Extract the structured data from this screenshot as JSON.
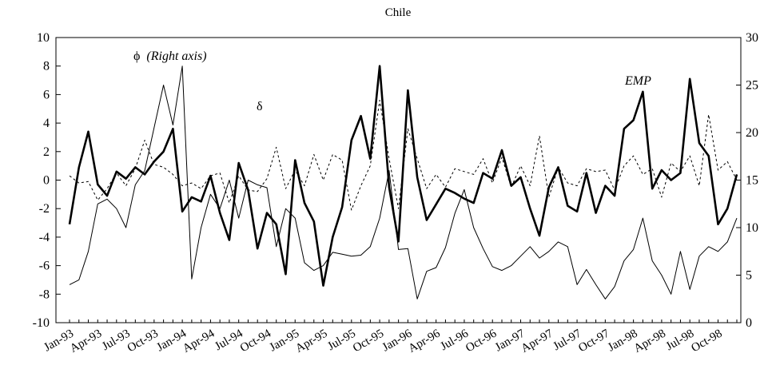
{
  "chart_data": {
    "type": "line",
    "title": "Chile",
    "x_tick_labels": [
      "Jan-93",
      "Apr-93",
      "Jul-93",
      "Oct-93",
      "Jan-94",
      "Apr-94",
      "Jul-94",
      "Oct-94",
      "Jan-95",
      "Apr-95",
      "Jul-95",
      "Oct-95",
      "Jan-96",
      "Apr-96",
      "Jul-96",
      "Oct-96",
      "Jan-97",
      "Apr-97",
      "Jul-97",
      "Oct-97",
      "Jan-98",
      "Apr-98",
      "Jul-98",
      "Oct-98"
    ],
    "x_start": "Jan-93",
    "x_end": "Dec-98",
    "y_left_range": [
      -10,
      10
    ],
    "y_left_ticks": [
      -10,
      -8,
      -6,
      -4,
      -2,
      0,
      2,
      4,
      6,
      8,
      10
    ],
    "y_right_range": [
      0,
      30
    ],
    "y_right_ticks": [
      0,
      5,
      10,
      15,
      20,
      25,
      30
    ],
    "grid": false,
    "annotations": {
      "phi": {
        "symbol": "ϕ",
        "text": "(Right axis)"
      },
      "delta": "δ",
      "emp": "EMP"
    },
    "series": [
      {
        "name": "EMP",
        "axis": "left",
        "style": "thick",
        "values": [
          -3.1,
          0.9,
          3.4,
          -0.3,
          -1.1,
          0.6,
          0.1,
          0.9,
          0.4,
          1.3,
          2.0,
          3.6,
          -2.2,
          -1.2,
          -1.5,
          0.3,
          -2.3,
          -4.2,
          1.2,
          -0.7,
          -4.8,
          -2.3,
          -3.1,
          -6.6,
          1.4,
          -1.6,
          -2.9,
          -7.4,
          -4.0,
          -1.9,
          2.8,
          4.5,
          1.5,
          8.0,
          -0.5,
          -4.3,
          6.3,
          0.2,
          -2.8,
          -1.7,
          -0.6,
          -0.9,
          -1.3,
          -1.6,
          0.5,
          0.1,
          2.1,
          -0.4,
          0.2,
          -2.0,
          -3.9,
          -0.5,
          0.9,
          -1.8,
          -2.2,
          0.5,
          -2.3,
          -0.4,
          -1.1,
          3.6,
          4.2,
          6.2,
          -0.6,
          0.7,
          0.0,
          0.5,
          7.1,
          2.6,
          1.7,
          -3.1,
          -2.0,
          0.4
        ]
      },
      {
        "name": "δ",
        "axis": "left",
        "style": "dashed",
        "values": [
          0.3,
          -0.2,
          -0.1,
          -1.4,
          -0.6,
          0.5,
          -0.4,
          0.8,
          2.8,
          1.1,
          0.9,
          0.4,
          -0.4,
          -0.2,
          -0.6,
          0.3,
          0.5,
          -1.6,
          0.3,
          -0.7,
          -0.8,
          0.1,
          2.3,
          -0.6,
          0.7,
          -0.4,
          1.8,
          0.0,
          1.8,
          1.4,
          -2.1,
          -0.4,
          1.0,
          5.6,
          1.5,
          -2.0,
          3.6,
          1.5,
          -0.6,
          0.4,
          -0.5,
          0.8,
          0.6,
          0.4,
          1.5,
          -0.2,
          1.6,
          -0.5,
          1.0,
          -0.4,
          3.1,
          -1.2,
          0.9,
          -0.2,
          -0.4,
          0.8,
          0.6,
          0.7,
          -0.7,
          1.0,
          1.7,
          0.4,
          0.8,
          -1.2,
          1.2,
          0.6,
          1.7,
          -0.4,
          4.6,
          0.7,
          1.3,
          0.0
        ]
      },
      {
        "name": "ϕ",
        "axis": "right",
        "style": "thin",
        "values": [
          4.0,
          4.5,
          7.5,
          12.5,
          13.0,
          12.0,
          10.0,
          14.5,
          16.0,
          20.5,
          25.0,
          20.8,
          27.0,
          4.6,
          10.0,
          13.5,
          12.0,
          15.0,
          11.0,
          15.0,
          14.5,
          14.2,
          8.0,
          12.0,
          11.0,
          6.3,
          5.5,
          6.0,
          7.4,
          7.2,
          7.0,
          7.1,
          8.0,
          11.0,
          16.0,
          7.7,
          7.8,
          2.5,
          5.4,
          5.8,
          7.9,
          11.5,
          14.0,
          10.0,
          7.8,
          5.9,
          5.5,
          6.0,
          7.0,
          8.0,
          6.8,
          7.5,
          8.5,
          8.0,
          4.0,
          5.6,
          4.0,
          2.5,
          3.8,
          6.5,
          7.7,
          11.0,
          6.5,
          5.0,
          3.0,
          7.5,
          3.5,
          7.0,
          8.0,
          7.5,
          8.5,
          11.0
        ]
      }
    ]
  }
}
